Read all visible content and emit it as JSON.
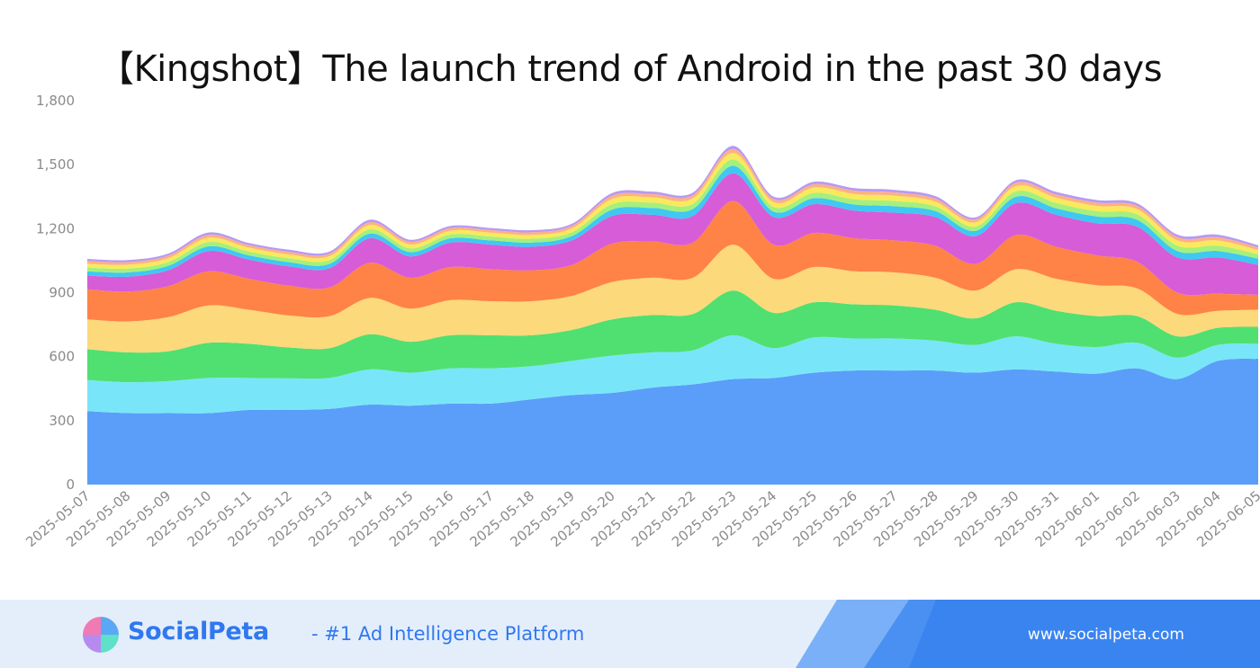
{
  "chart_data": {
    "type": "area",
    "stacked": true,
    "title": "【Kingshot】The launch trend of Android in the past 30 days",
    "xlabel": "",
    "ylabel": "",
    "ylim": [
      0,
      1800
    ],
    "yticks": [
      0,
      300,
      600,
      900,
      1200,
      1500,
      1800
    ],
    "ytick_labels": [
      "0",
      "300",
      "600",
      "900",
      "1,200",
      "1,500",
      "1,800"
    ],
    "grid": false,
    "legend": "none",
    "x": [
      "2025-05-07",
      "2025-05-08",
      "2025-05-09",
      "2025-05-10",
      "2025-05-11",
      "2025-05-12",
      "2025-05-13",
      "2025-05-14",
      "2025-05-15",
      "2025-05-16",
      "2025-05-17",
      "2025-05-18",
      "2025-05-19",
      "2025-05-20",
      "2025-05-21",
      "2025-05-22",
      "2025-05-23",
      "2025-05-24",
      "2025-05-25",
      "2025-05-26",
      "2025-05-27",
      "2025-05-28",
      "2025-05-29",
      "2025-05-30",
      "2025-05-31",
      "2025-06-01",
      "2025-06-02",
      "2025-06-03",
      "2025-06-04",
      "2025-06-05"
    ],
    "series": [
      {
        "color": "#5b9ef9",
        "values": [
          345,
          335,
          335,
          335,
          350,
          350,
          355,
          375,
          370,
          380,
          380,
          400,
          420,
          430,
          455,
          470,
          495,
          500,
          525,
          535,
          535,
          535,
          525,
          540,
          530,
          520,
          545,
          495,
          580,
          590
        ]
      },
      {
        "color": "#78e6f8",
        "values": [
          145,
          145,
          150,
          165,
          150,
          148,
          145,
          165,
          155,
          165,
          165,
          155,
          160,
          175,
          165,
          160,
          205,
          140,
          165,
          150,
          150,
          140,
          130,
          155,
          130,
          125,
          120,
          100,
          75,
          70
        ]
      },
      {
        "color": "#4fe071",
        "values": [
          145,
          140,
          140,
          165,
          160,
          145,
          140,
          165,
          145,
          155,
          155,
          145,
          145,
          170,
          175,
          170,
          210,
          165,
          165,
          160,
          155,
          145,
          125,
          160,
          155,
          145,
          125,
          100,
          80,
          80
        ]
      },
      {
        "color": "#fcd97a",
        "values": [
          140,
          145,
          160,
          175,
          160,
          150,
          150,
          170,
          155,
          165,
          160,
          160,
          160,
          175,
          175,
          170,
          215,
          160,
          165,
          155,
          155,
          150,
          130,
          155,
          150,
          145,
          130,
          105,
          80,
          80
        ]
      },
      {
        "color": "#ff8247",
        "values": [
          140,
          140,
          145,
          160,
          145,
          140,
          135,
          165,
          145,
          155,
          150,
          145,
          145,
          180,
          170,
          165,
          205,
          160,
          160,
          155,
          150,
          150,
          125,
          160,
          150,
          140,
          125,
          100,
          80,
          70
        ]
      },
      {
        "color": "#d65cd8",
        "values": [
          65,
          70,
          75,
          95,
          90,
          90,
          90,
          115,
          100,
          115,
          115,
          110,
          115,
          130,
          125,
          125,
          130,
          130,
          135,
          130,
          130,
          135,
          130,
          150,
          150,
          150,
          165,
          165,
          170,
          140
        ]
      },
      {
        "color": "#3ec8f2",
        "values": [
          20,
          20,
          20,
          22,
          20,
          20,
          20,
          22,
          20,
          20,
          20,
          20,
          20,
          30,
          32,
          32,
          35,
          25,
          28,
          28,
          30,
          28,
          25,
          30,
          30,
          32,
          32,
          30,
          30,
          30
        ]
      },
      {
        "color": "#a5f07c",
        "values": [
          18,
          18,
          18,
          20,
          18,
          18,
          18,
          20,
          18,
          18,
          18,
          18,
          18,
          25,
          25,
          25,
          30,
          22,
          25,
          25,
          25,
          22,
          20,
          25,
          25,
          25,
          25,
          25,
          25,
          20
        ]
      },
      {
        "color": "#f9e95c",
        "values": [
          18,
          18,
          18,
          20,
          18,
          18,
          18,
          20,
          18,
          18,
          18,
          18,
          18,
          25,
          25,
          25,
          30,
          22,
          25,
          25,
          25,
          22,
          20,
          25,
          25,
          25,
          25,
          25,
          25,
          20
        ]
      },
      {
        "color": "#ffb084",
        "values": [
          12,
          12,
          12,
          13,
          12,
          12,
          12,
          13,
          12,
          12,
          12,
          12,
          12,
          15,
          15,
          15,
          18,
          14,
          15,
          15,
          15,
          14,
          13,
          15,
          15,
          15,
          15,
          15,
          15,
          12
        ]
      },
      {
        "color": "#b79af2",
        "values": [
          10,
          10,
          10,
          12,
          10,
          10,
          10,
          12,
          10,
          10,
          10,
          10,
          10,
          12,
          12,
          12,
          15,
          12,
          12,
          12,
          12,
          12,
          10,
          12,
          12,
          12,
          12,
          12,
          12,
          10
        ]
      }
    ]
  },
  "footer": {
    "brand": "SocialPeta",
    "tagline": "- #1 Ad Intelligence Platform",
    "url": "www.socialpeta.com",
    "accent_color": "#2f78f0",
    "logo_icon": "socialpeta-logo-icon"
  }
}
